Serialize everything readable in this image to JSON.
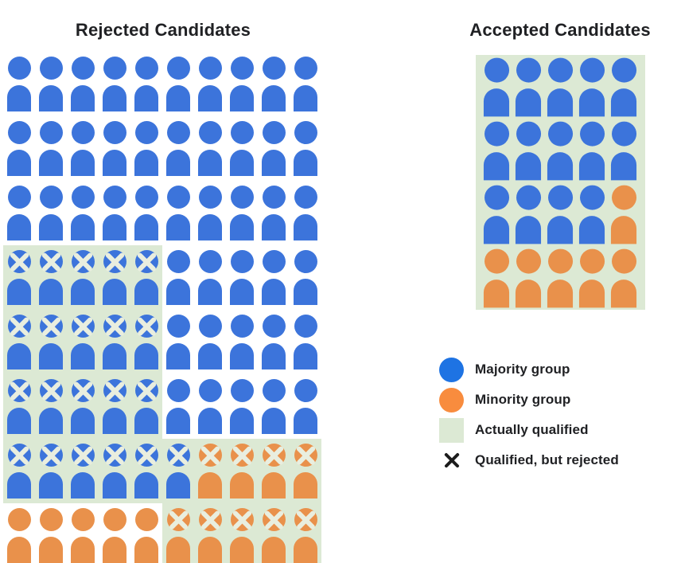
{
  "titles": {
    "rejected": "Rejected Candidates",
    "accepted": "Accepted Candidates"
  },
  "colors": {
    "majority": "#3C74DB",
    "minority": "#E9914B",
    "qualified-bg": "#DCE9D4",
    "icon-x": "#E9EEDF",
    "legend-majority": "#1E73E3",
    "legend-minority": "#F88C3E",
    "legend-x": "#1C1C1C",
    "text": "#202124"
  },
  "rejected": {
    "rows": [
      [
        "B",
        "B",
        "B",
        "B",
        "B",
        "B",
        "B",
        "B",
        "B",
        "B"
      ],
      [
        "B",
        "B",
        "B",
        "B",
        "B",
        "B",
        "B",
        "B",
        "B",
        "B"
      ],
      [
        "B",
        "B",
        "B",
        "B",
        "B",
        "B",
        "B",
        "B",
        "B",
        "B"
      ],
      [
        "BXq",
        "BXq",
        "BXq",
        "BXq",
        "BXq",
        "B",
        "B",
        "B",
        "B",
        "B"
      ],
      [
        "BXq",
        "BXq",
        "BXq",
        "BXq",
        "BXq",
        "B",
        "B",
        "B",
        "B",
        "B"
      ],
      [
        "BXq",
        "BXq",
        "BXq",
        "BXq",
        "BXq",
        "B",
        "B",
        "B",
        "B",
        "B"
      ],
      [
        "BXq",
        "BXq",
        "BXq",
        "BXq",
        "BXq",
        "BXq",
        "OXq",
        "OXq",
        "OXq",
        "OXq"
      ],
      [
        "O",
        "O",
        "O",
        "O",
        "O",
        "OXq",
        "OXq",
        "OXq",
        "OXq",
        "OXq"
      ]
    ]
  },
  "accepted": {
    "rows": [
      [
        "Bq",
        "Bq",
        "Bq",
        "Bq",
        "Bq"
      ],
      [
        "Bq",
        "Bq",
        "Bq",
        "Bq",
        "Bq"
      ],
      [
        "Bq",
        "Bq",
        "Bq",
        "Bq",
        "Oq"
      ],
      [
        "Oq",
        "Oq",
        "Oq",
        "Oq",
        "Oq"
      ]
    ]
  },
  "legend": {
    "items": [
      {
        "swatch": "majority-circle",
        "label": "Majority group"
      },
      {
        "swatch": "minority-circle",
        "label": "Minority group"
      },
      {
        "swatch": "qualified-square",
        "label": "Actually qualified"
      },
      {
        "swatch": "x-mark",
        "label": "Qualified, but rejected"
      }
    ]
  },
  "chart_data": {
    "type": "pictograph",
    "panels": [
      {
        "title": "Rejected Candidates",
        "grid": "10 columns x 8 rows",
        "total": 80,
        "majority_count": 66,
        "minority_count": 14,
        "actually_qualified": 30,
        "qualified_but_rejected_majority": 21,
        "qualified_but_rejected_minority": 9
      },
      {
        "title": "Accepted Candidates",
        "grid": "5 columns x 4 rows",
        "total": 20,
        "majority_count": 14,
        "minority_count": 6,
        "actually_qualified": 20
      }
    ],
    "legend": [
      "Majority group",
      "Minority group",
      "Actually qualified",
      "Qualified, but rejected"
    ]
  }
}
